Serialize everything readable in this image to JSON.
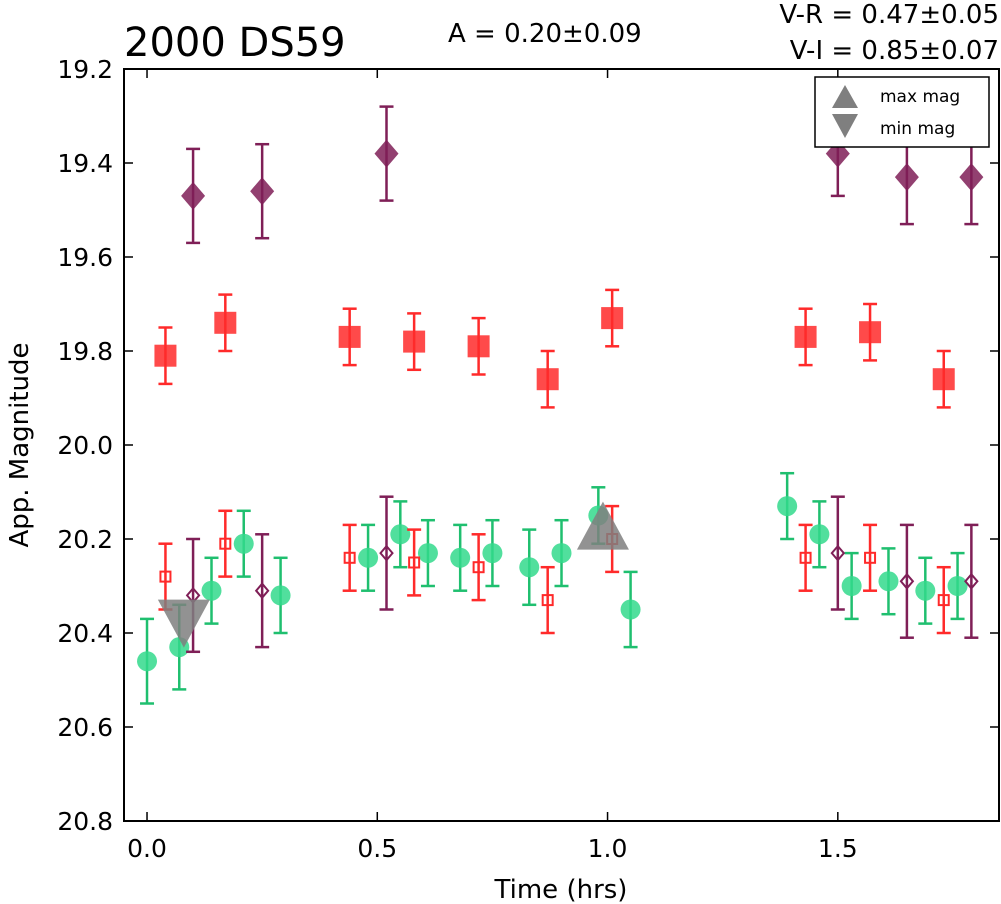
{
  "chart_data": {
    "type": "scatter",
    "title": "2000 DS59",
    "annotations": {
      "amplitude": "A  = 0.20±0.09",
      "v_r": "V-R = 0.47±0.05",
      "v_i": "V-I  = 0.85±0.07"
    },
    "xlabel": "Time (hrs)",
    "ylabel": "App. Magnitude",
    "xlim": [
      -0.05,
      1.85
    ],
    "ylim": [
      20.8,
      19.2
    ],
    "y_inverted": true,
    "xticks": [
      "0.0",
      "0.5",
      "1.0",
      "1.5"
    ],
    "xtick_values": [
      0.0,
      0.5,
      1.0,
      1.5
    ],
    "yticks": [
      "19.2",
      "19.4",
      "19.6",
      "19.8",
      "20.0",
      "20.2",
      "20.4",
      "20.6",
      "20.8"
    ],
    "ytick_values": [
      19.2,
      19.4,
      19.6,
      19.8,
      20.0,
      20.2,
      20.4,
      20.6,
      20.8
    ],
    "grid": false,
    "legend": {
      "placement": "top-right",
      "entries": [
        {
          "label": "max mag",
          "marker": "triangle-up",
          "color": "#7f7f7f"
        },
        {
          "label": "min mag",
          "marker": "triangle-down",
          "color": "#7f7f7f"
        }
      ]
    },
    "series": [
      {
        "marker": "diamond",
        "filled": true,
        "color": "#7f1f57",
        "errcolor": "#7f1f57",
        "x": [
          0.1,
          0.25,
          0.52,
          1.5,
          1.65,
          1.79
        ],
        "y": [
          19.47,
          19.46,
          19.38,
          19.38,
          19.43,
          19.43
        ],
        "err": [
          0.1,
          0.1,
          0.1,
          0.09,
          0.1,
          0.1
        ]
      },
      {
        "marker": "square",
        "filled": true,
        "color": "#ff2a2a",
        "errcolor": "#ff2a2a",
        "x": [
          0.04,
          0.17,
          0.44,
          0.58,
          0.72,
          0.87,
          1.01,
          1.43,
          1.57,
          1.73
        ],
        "y": [
          19.81,
          19.74,
          19.77,
          19.78,
          19.79,
          19.86,
          19.73,
          19.77,
          19.76,
          19.86
        ],
        "err": [
          0.06,
          0.06,
          0.06,
          0.06,
          0.06,
          0.06,
          0.06,
          0.06,
          0.06,
          0.06
        ]
      },
      {
        "marker": "circle",
        "filled": true,
        "color": "#33d98c",
        "errcolor": "#1fbf6f",
        "x": [
          0.0,
          0.07,
          0.14,
          0.21,
          0.29,
          0.48,
          0.55,
          0.61,
          0.68,
          0.75,
          0.83,
          0.9,
          0.98,
          1.05,
          1.39,
          1.46,
          1.53,
          1.61,
          1.69,
          1.76
        ],
        "y": [
          20.46,
          20.43,
          20.31,
          20.21,
          20.32,
          20.24,
          20.19,
          20.23,
          20.24,
          20.23,
          20.26,
          20.23,
          20.15,
          20.35,
          20.13,
          20.19,
          20.3,
          20.29,
          20.31,
          20.3
        ],
        "err": [
          0.09,
          0.09,
          0.07,
          0.07,
          0.08,
          0.07,
          0.07,
          0.07,
          0.07,
          0.07,
          0.08,
          0.07,
          0.06,
          0.08,
          0.07,
          0.07,
          0.07,
          0.07,
          0.07,
          0.07
        ]
      },
      {
        "marker": "square",
        "filled": false,
        "color": "#ff2a2a",
        "errcolor": "#ff2a2a",
        "x": [
          0.04,
          0.17,
          0.44,
          0.58,
          0.72,
          0.87,
          1.01,
          1.43,
          1.57,
          1.73
        ],
        "y": [
          20.28,
          20.21,
          20.24,
          20.25,
          20.26,
          20.33,
          20.2,
          20.24,
          20.24,
          20.33
        ],
        "err": [
          0.07,
          0.07,
          0.07,
          0.07,
          0.07,
          0.07,
          0.07,
          0.07,
          0.07,
          0.07
        ]
      },
      {
        "marker": "diamond",
        "filled": false,
        "color": "#7f1f57",
        "errcolor": "#7f1f57",
        "x": [
          0.1,
          0.25,
          0.52,
          1.5,
          1.65,
          1.79
        ],
        "y": [
          20.32,
          20.31,
          20.23,
          20.23,
          20.29,
          20.29
        ],
        "err": [
          0.12,
          0.12,
          0.12,
          0.12,
          0.12,
          0.12
        ]
      },
      {
        "marker": "triangle-up",
        "filled": true,
        "color": "#7f7f7f",
        "errcolor": "none",
        "x": [
          0.99
        ],
        "y": [
          20.18
        ],
        "err": [
          0
        ]
      },
      {
        "marker": "triangle-down",
        "filled": true,
        "color": "#7f7f7f",
        "errcolor": "none",
        "x": [
          0.08
        ],
        "y": [
          20.38
        ],
        "err": [
          0
        ]
      }
    ]
  }
}
